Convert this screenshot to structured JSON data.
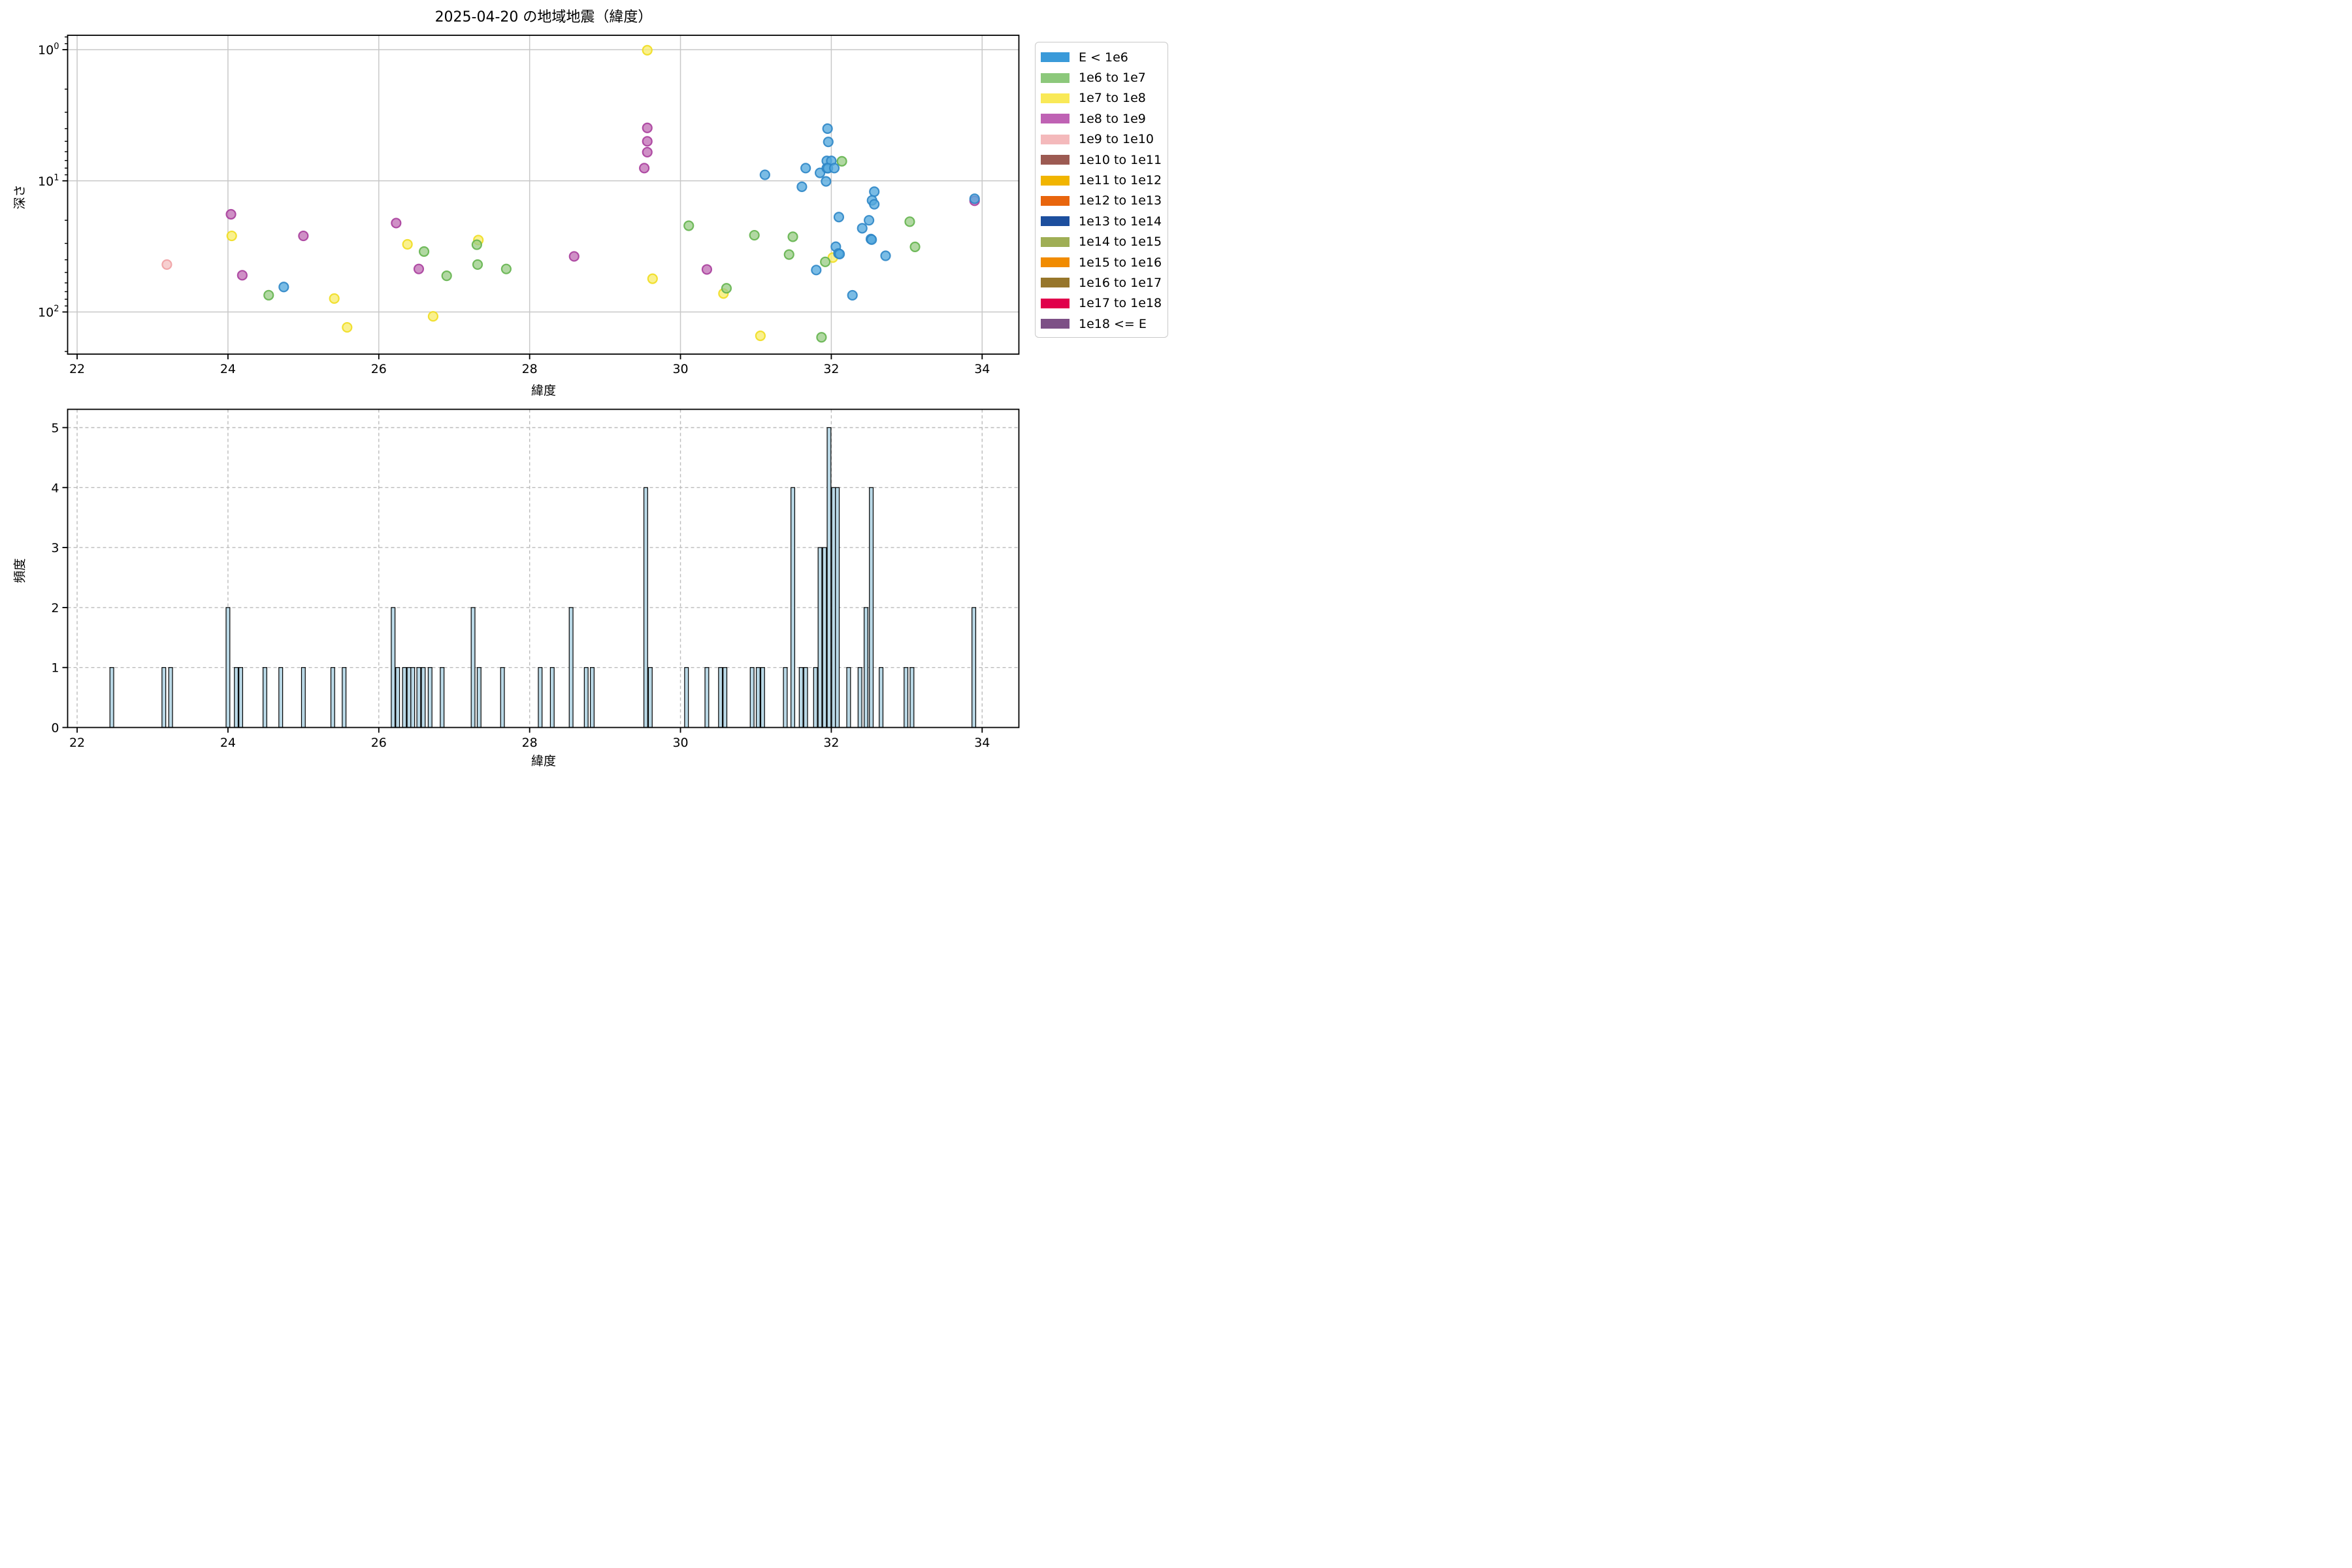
{
  "title": "2025-04-20 の地域地震（緯度）",
  "legend": {
    "entries": [
      {
        "label": "E < 1e6",
        "color": "#3a9ad9"
      },
      {
        "label": "1e6 to 1e7",
        "color": "#8cc87b"
      },
      {
        "label": "1e7 to 1e8",
        "color": "#f9e957"
      },
      {
        "label": "1e8 to 1e9",
        "color": "#bf62b4"
      },
      {
        "label": "1e9 to 1e10",
        "color": "#f4b9bb"
      },
      {
        "label": "1e10 to 1e11",
        "color": "#9c5a52"
      },
      {
        "label": "1e11 to 1e12",
        "color": "#f1b500"
      },
      {
        "label": "1e12 to 1e13",
        "color": "#e8650d"
      },
      {
        "label": "1e13 to 1e14",
        "color": "#1d4f9e"
      },
      {
        "label": "1e14 to 1e15",
        "color": "#9fae55"
      },
      {
        "label": "1e15 to 1e16",
        "color": "#f18b00"
      },
      {
        "label": "1e16 to 1e17",
        "color": "#97762b"
      },
      {
        "label": "1e17 to 1e18",
        "color": "#e0004b"
      },
      {
        "label": "1e18 <= E",
        "color": "#7d5086"
      }
    ]
  },
  "chart_data": [
    {
      "type": "scatter",
      "title": "2025-04-20 の地域地震（緯度）",
      "xlabel": "緯度",
      "ylabel": "深さ",
      "x_ticks": [
        22,
        24,
        26,
        28,
        30,
        32,
        34
      ],
      "y_tick_exponents": [
        0,
        1,
        2
      ],
      "y_minor_ticks": [
        0.8,
        0.9,
        2,
        3,
        4,
        5,
        6,
        7,
        8,
        9,
        20,
        30,
        40,
        50,
        60,
        70,
        80,
        90,
        200
      ],
      "xlim": [
        21.874,
        34.487
      ],
      "ylim": [
        0.777,
        209.4
      ],
      "y_scale": "log-inverted",
      "grid": "solid",
      "series": [
        {
          "name": "1e8 to 1e9",
          "fill": "#c271b6",
          "stroke": "#a93e9c",
          "points": [
            [
              24.04,
              18.0
            ],
            [
              24.19,
              52.5
            ],
            [
              25.0,
              26.3
            ],
            [
              26.23,
              21.0
            ],
            [
              26.53,
              47.0
            ],
            [
              28.59,
              37.7
            ],
            [
              29.56,
              3.95
            ],
            [
              29.56,
              5.0
            ],
            [
              29.56,
              6.05
            ],
            [
              29.52,
              8.0
            ],
            [
              30.35,
              47.4
            ],
            [
              33.9,
              14.2
            ]
          ]
        },
        {
          "name": "1e9 to 1e10",
          "fill": "#f5c2c3",
          "stroke": "#efa0a3",
          "points": [
            [
              23.19,
              43.5
            ]
          ]
        },
        {
          "name": "1e7 to 1e8",
          "fill": "#f9ed6e",
          "stroke": "#f0dd20",
          "points": [
            [
              24.05,
              26.3
            ],
            [
              25.41,
              79.0
            ],
            [
              25.58,
              131.0
            ],
            [
              26.38,
              30.5
            ],
            [
              26.72,
              108.0
            ],
            [
              27.32,
              28.3
            ],
            [
              29.56,
              1.01
            ],
            [
              29.63,
              55.8
            ],
            [
              30.57,
              72.3
            ],
            [
              31.06,
              152.0
            ],
            [
              32.02,
              38.5
            ]
          ]
        },
        {
          "name": "1e6 to 1e7",
          "fill": "#9bcd88",
          "stroke": "#64b44e",
          "points": [
            [
              24.54,
              74.5
            ],
            [
              26.6,
              34.6
            ],
            [
              26.9,
              53.0
            ],
            [
              27.3,
              30.7
            ],
            [
              27.31,
              43.5
            ],
            [
              27.69,
              47.0
            ],
            [
              30.11,
              22.0
            ],
            [
              30.61,
              66.0
            ],
            [
              30.98,
              26.0
            ],
            [
              31.44,
              36.5
            ],
            [
              31.49,
              26.7
            ],
            [
              31.87,
              156.0
            ],
            [
              31.92,
              41.5
            ],
            [
              32.14,
              7.1
            ],
            [
              33.04,
              20.5
            ],
            [
              33.11,
              31.9
            ]
          ]
        },
        {
          "name": "E < 1e6",
          "fill": "#55a9de",
          "stroke": "#2e86c6",
          "points": [
            [
              24.74,
              64.5
            ],
            [
              31.12,
              9.0
            ],
            [
              31.61,
              11.1
            ],
            [
              31.66,
              8.0
            ],
            [
              31.85,
              8.7
            ],
            [
              31.93,
              10.1
            ],
            [
              31.94,
              7.05
            ],
            [
              32.0,
              7.05
            ],
            [
              31.94,
              8.0
            ],
            [
              31.955,
              8.02
            ],
            [
              32.04,
              8.0
            ],
            [
              31.95,
              4.0
            ],
            [
              31.96,
              5.05
            ],
            [
              32.57,
              12.1
            ],
            [
              32.54,
              14.1
            ],
            [
              32.57,
              15.1
            ],
            [
              32.1,
              18.9
            ],
            [
              32.5,
              20.0
            ],
            [
              32.41,
              23.0
            ],
            [
              32.525,
              27.8
            ],
            [
              32.535,
              28.1
            ],
            [
              32.06,
              31.8
            ],
            [
              32.095,
              35.8
            ],
            [
              32.11,
              36.2
            ],
            [
              31.8,
              47.9
            ],
            [
              32.72,
              37.3
            ],
            [
              32.28,
              74.6
            ],
            [
              33.9,
              13.7
            ]
          ]
        }
      ]
    },
    {
      "type": "bar",
      "xlabel": "緯度",
      "ylabel": "頻度",
      "x_ticks": [
        22,
        24,
        26,
        28,
        30,
        32,
        34
      ],
      "y_ticks": [
        0,
        1,
        2,
        3,
        4,
        5
      ],
      "xlim": [
        21.874,
        34.487
      ],
      "ylim": [
        0,
        5.3
      ],
      "grid": "dashed",
      "bar_width": 0.05,
      "bar_fill": "#b9d8e6",
      "bar_edge": "#000000",
      "bars": [
        [
          22.46,
          1
        ],
        [
          23.15,
          1
        ],
        [
          23.24,
          1
        ],
        [
          24.0,
          2
        ],
        [
          24.11,
          1
        ],
        [
          24.17,
          1
        ],
        [
          24.49,
          1
        ],
        [
          24.7,
          1
        ],
        [
          25.0,
          1
        ],
        [
          25.39,
          1
        ],
        [
          25.54,
          1
        ],
        [
          26.19,
          2
        ],
        [
          26.25,
          1
        ],
        [
          26.34,
          1
        ],
        [
          26.4,
          1
        ],
        [
          26.45,
          1
        ],
        [
          26.53,
          1
        ],
        [
          26.59,
          1
        ],
        [
          26.68,
          1
        ],
        [
          26.84,
          1
        ],
        [
          27.25,
          2
        ],
        [
          27.33,
          1
        ],
        [
          27.64,
          1
        ],
        [
          28.14,
          1
        ],
        [
          28.3,
          1
        ],
        [
          28.55,
          2
        ],
        [
          28.75,
          1
        ],
        [
          28.83,
          1
        ],
        [
          29.54,
          4
        ],
        [
          29.6,
          1
        ],
        [
          30.08,
          1
        ],
        [
          30.35,
          1
        ],
        [
          30.53,
          1
        ],
        [
          30.59,
          1
        ],
        [
          30.95,
          1
        ],
        [
          31.03,
          1
        ],
        [
          31.09,
          1
        ],
        [
          31.39,
          1
        ],
        [
          31.49,
          4
        ],
        [
          31.6,
          1
        ],
        [
          31.66,
          1
        ],
        [
          31.79,
          1
        ],
        [
          31.85,
          3
        ],
        [
          31.91,
          3
        ],
        [
          31.97,
          5
        ],
        [
          32.03,
          4
        ],
        [
          32.08,
          4
        ],
        [
          32.23,
          1
        ],
        [
          32.38,
          1
        ],
        [
          32.46,
          2
        ],
        [
          32.53,
          4
        ],
        [
          32.66,
          1
        ],
        [
          32.99,
          1
        ],
        [
          33.07,
          1
        ],
        [
          33.89,
          2
        ]
      ]
    }
  ]
}
